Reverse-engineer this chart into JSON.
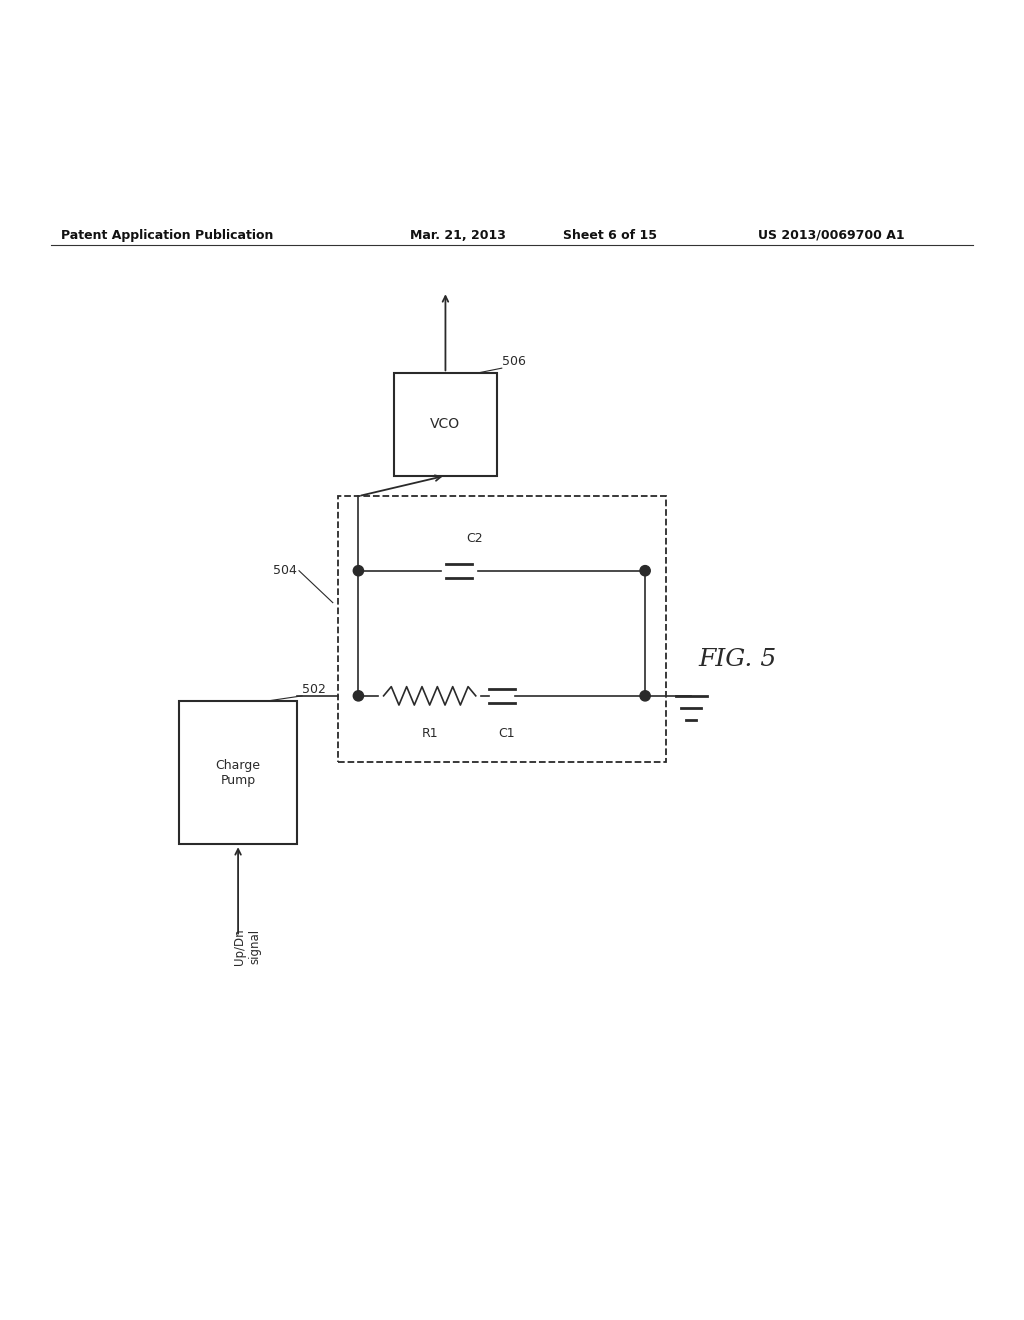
{
  "bg_color": "#ffffff",
  "line_color": "#2a2a2a",
  "header_text": "Patent Application Publication",
  "header_date": "Mar. 21, 2013",
  "header_sheet": "Sheet 6 of 15",
  "header_patent": "US 2013/0069700 A1",
  "fig_label": "FIG. 5"
}
